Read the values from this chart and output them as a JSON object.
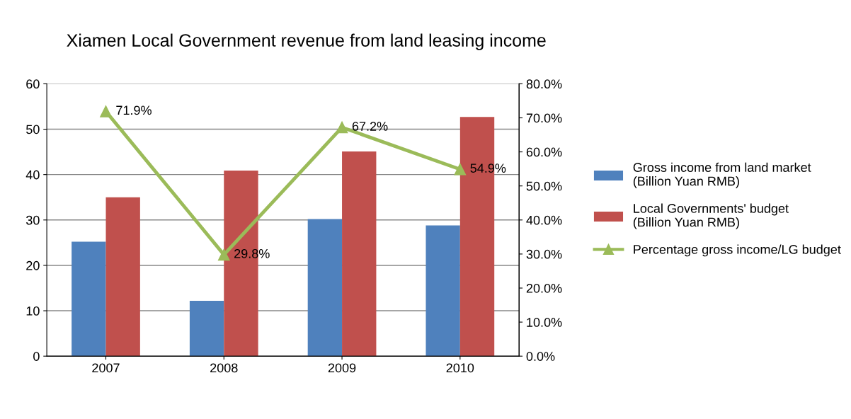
{
  "chart_data": {
    "type": "bar",
    "title": "Xiamen Local Government revenue from land leasing income",
    "categories": [
      "2007",
      "2008",
      "2009",
      "2010"
    ],
    "series": [
      {
        "name": "Gross income from land market\n(Billion Yuan RMB)",
        "color": "#4f81bd",
        "values": [
          25.2,
          12.2,
          30.2,
          28.8
        ]
      },
      {
        "name": "Local Governments' budget\n(Billion Yuan RMB)",
        "color": "#c0504d",
        "values": [
          35.0,
          40.9,
          45.1,
          52.7
        ]
      },
      {
        "name": "Percentage gross income/LG budget",
        "color": "#9bbb59",
        "type": "line",
        "axis": "y2",
        "marker": "triangle",
        "values": [
          71.9,
          29.8,
          67.2,
          54.9
        ],
        "value_labels": [
          "71.9%",
          "29.8%",
          "67.2%",
          "54.9%"
        ]
      }
    ],
    "ylim": [
      0,
      60
    ],
    "yticks": [
      0,
      10,
      20,
      30,
      40,
      50,
      60
    ],
    "y2lim": [
      0,
      80
    ],
    "y2ticks": [
      {
        "value": 0,
        "label": "0.0%"
      },
      {
        "value": 10,
        "label": "10.0%"
      },
      {
        "value": 20,
        "label": "20.0%"
      },
      {
        "value": 30,
        "label": "30.0%"
      },
      {
        "value": 40,
        "label": "40.0%"
      },
      {
        "value": 50,
        "label": "50.0%"
      },
      {
        "value": 60,
        "label": "60.0%"
      },
      {
        "value": 70,
        "label": "70.0%"
      },
      {
        "value": 80,
        "label": "80.0%"
      }
    ],
    "grid": "y",
    "legend": "right"
  }
}
